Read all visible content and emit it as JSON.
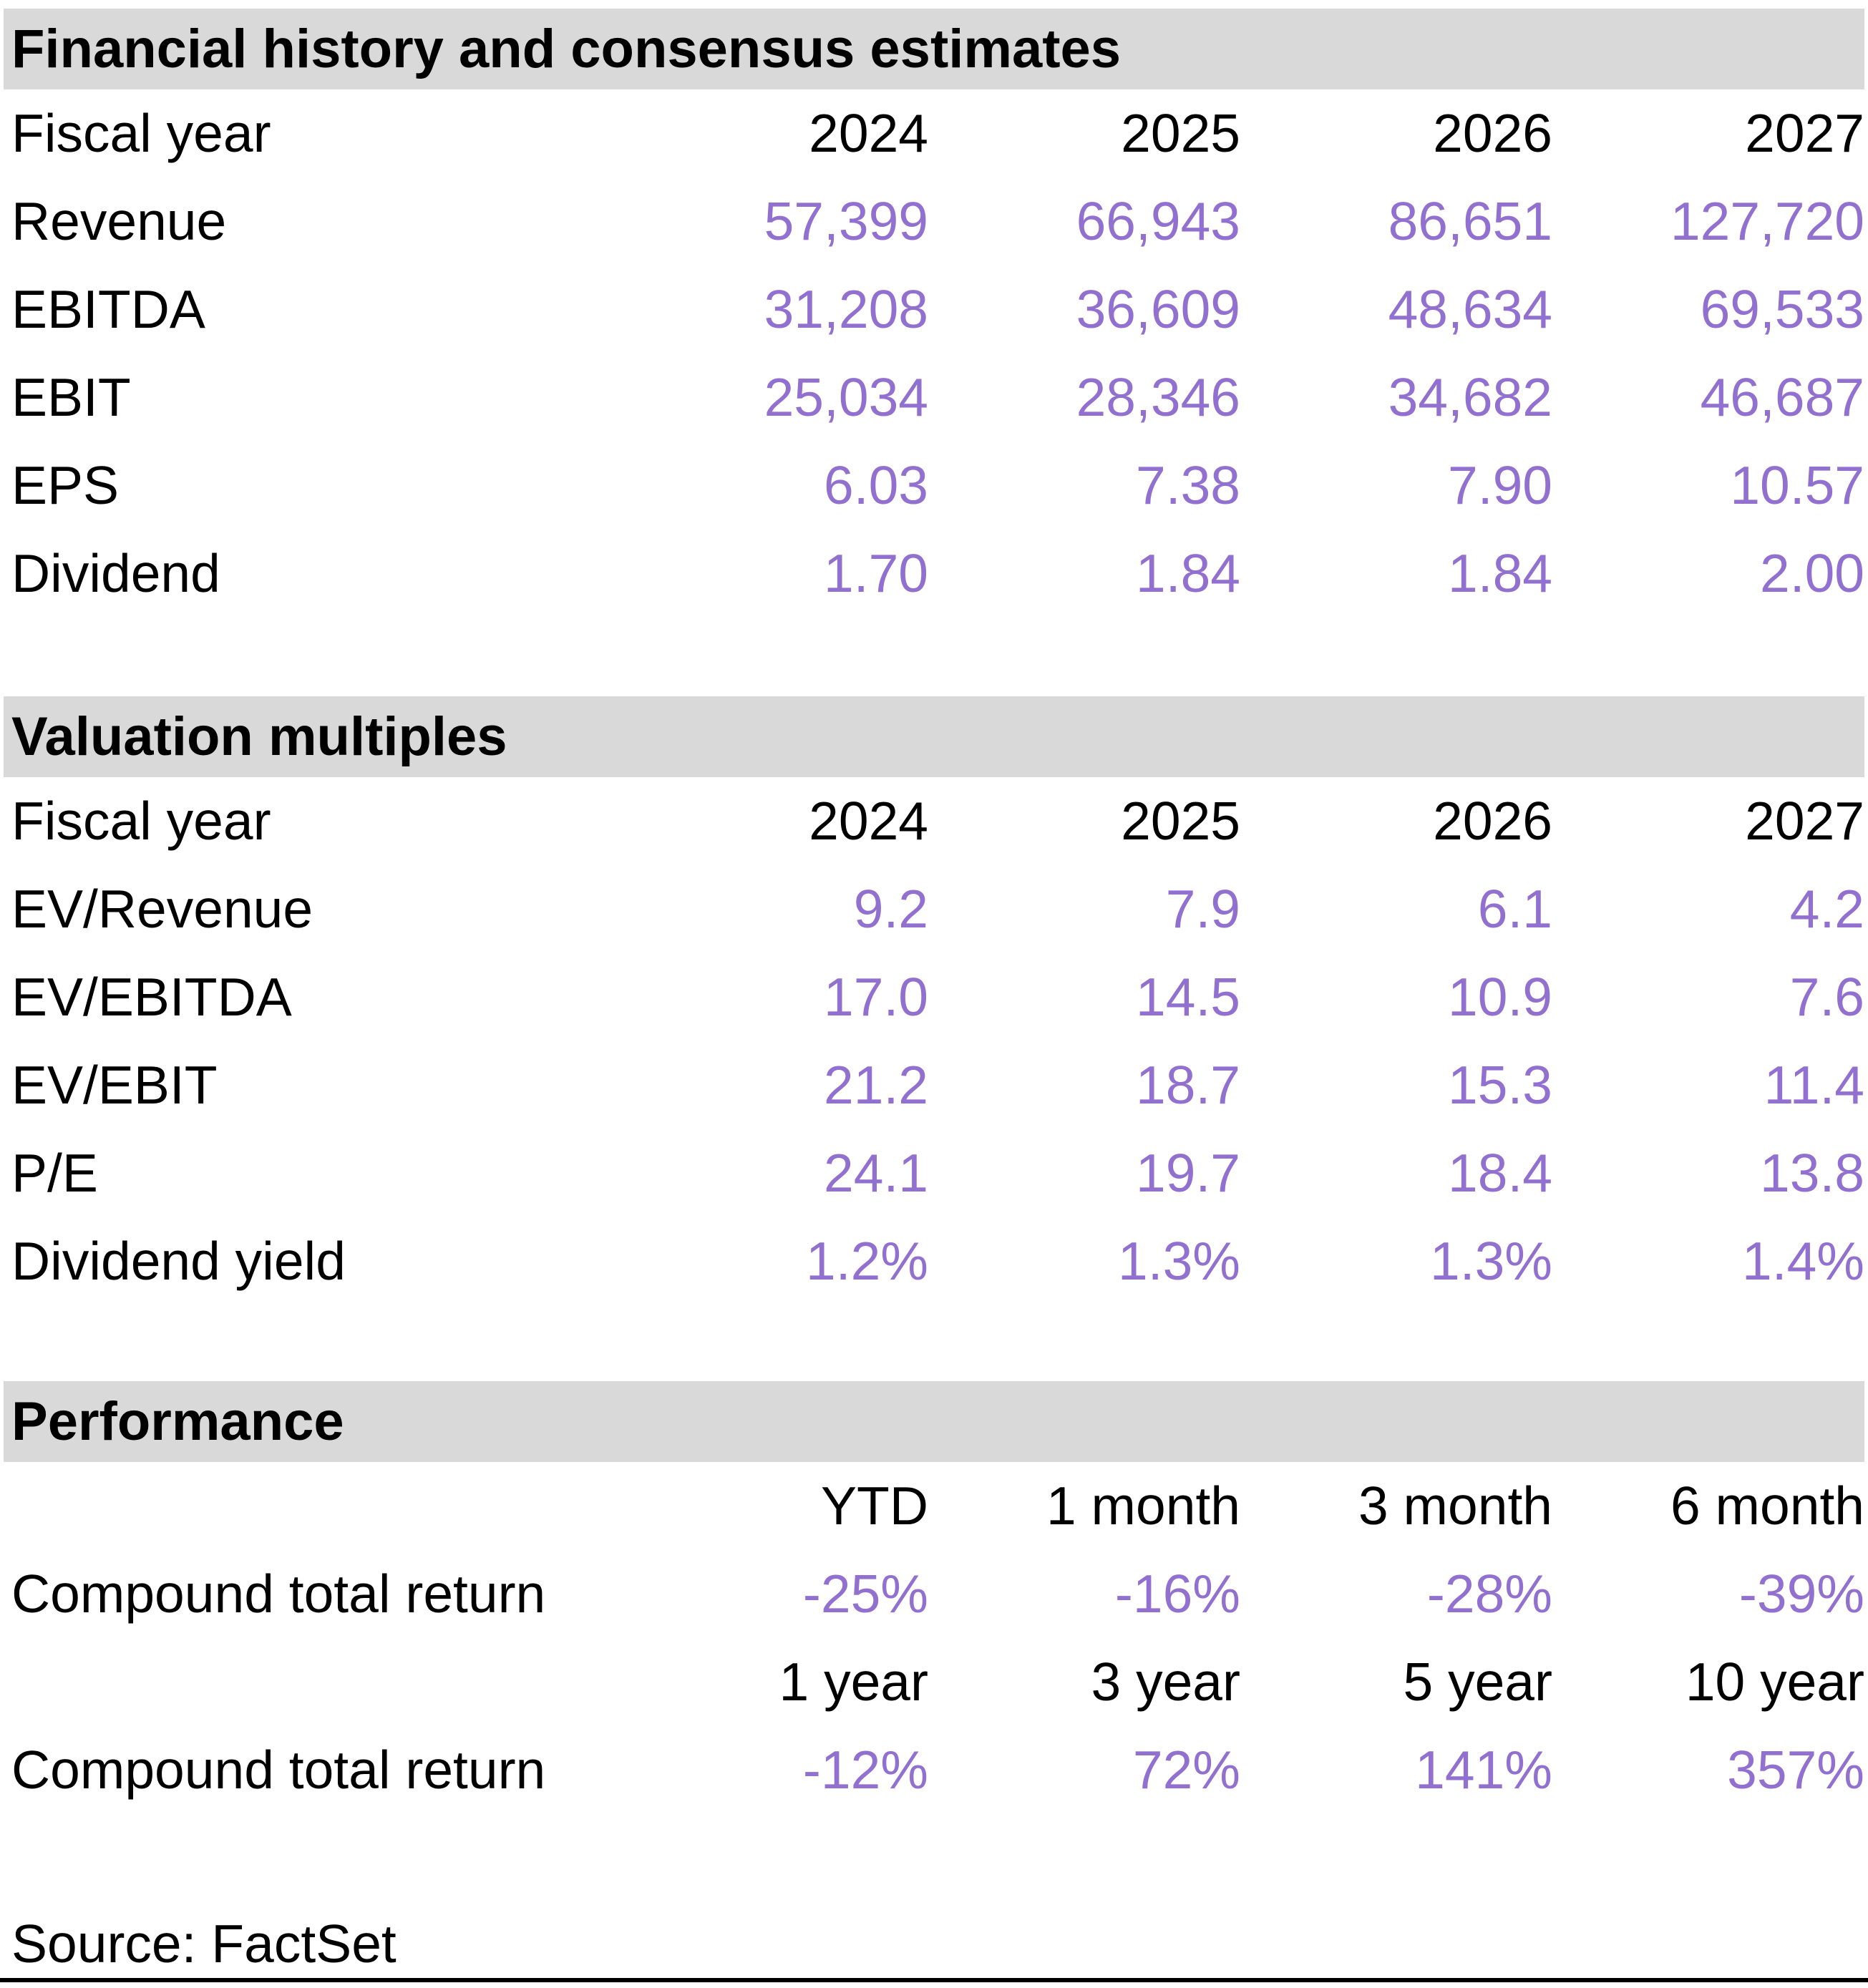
{
  "colors": {
    "value_text": "#9170d0",
    "section_header_bg": "#d9d9d9",
    "label_text": "#000000"
  },
  "sections": [
    {
      "title": "Financial history and consensus estimates",
      "header_label": "Fiscal year",
      "columns": [
        "2024",
        "2025",
        "2026",
        "2027"
      ],
      "rows": [
        {
          "label": "Revenue",
          "values": [
            "57,399",
            "66,943",
            "86,651",
            "127,720"
          ]
        },
        {
          "label": "EBITDA",
          "values": [
            "31,208",
            "36,609",
            "48,634",
            "69,533"
          ]
        },
        {
          "label": "EBIT",
          "values": [
            "25,034",
            "28,346",
            "34,682",
            "46,687"
          ]
        },
        {
          "label": "EPS",
          "values": [
            "6.03",
            "7.38",
            "7.90",
            "10.57"
          ]
        },
        {
          "label": "Dividend",
          "values": [
            "1.70",
            "1.84",
            "1.84",
            "2.00"
          ]
        }
      ]
    },
    {
      "title": "Valuation multiples",
      "header_label": "Fiscal year",
      "columns": [
        "2024",
        "2025",
        "2026",
        "2027"
      ],
      "rows": [
        {
          "label": "EV/Revenue",
          "values": [
            "9.2",
            "7.9",
            "6.1",
            "4.2"
          ]
        },
        {
          "label": "EV/EBITDA",
          "values": [
            "17.0",
            "14.5",
            "10.9",
            "7.6"
          ]
        },
        {
          "label": "EV/EBIT",
          "values": [
            "21.2",
            "18.7",
            "15.3",
            "11.4"
          ]
        },
        {
          "label": "P/E",
          "values": [
            "24.1",
            "19.7",
            "18.4",
            "13.8"
          ]
        },
        {
          "label": "Dividend yield",
          "values": [
            "1.2%",
            "1.3%",
            "1.3%",
            "1.4%"
          ]
        }
      ]
    },
    {
      "title": "Performance",
      "groups": [
        {
          "columns": [
            "YTD",
            "1 month",
            "3 month",
            "6 month"
          ],
          "rows": [
            {
              "label": "Compound total return",
              "values": [
                "-25%",
                "-16%",
                "-28%",
                "-39%"
              ]
            }
          ]
        },
        {
          "columns": [
            "1 year",
            "3 year",
            "5 year",
            "10 year"
          ],
          "rows": [
            {
              "label": "Compound total return",
              "values": [
                "-12%",
                "72%",
                "141%",
                "357%"
              ]
            }
          ]
        }
      ]
    }
  ],
  "footer": {
    "source": "Source: FactSet"
  }
}
